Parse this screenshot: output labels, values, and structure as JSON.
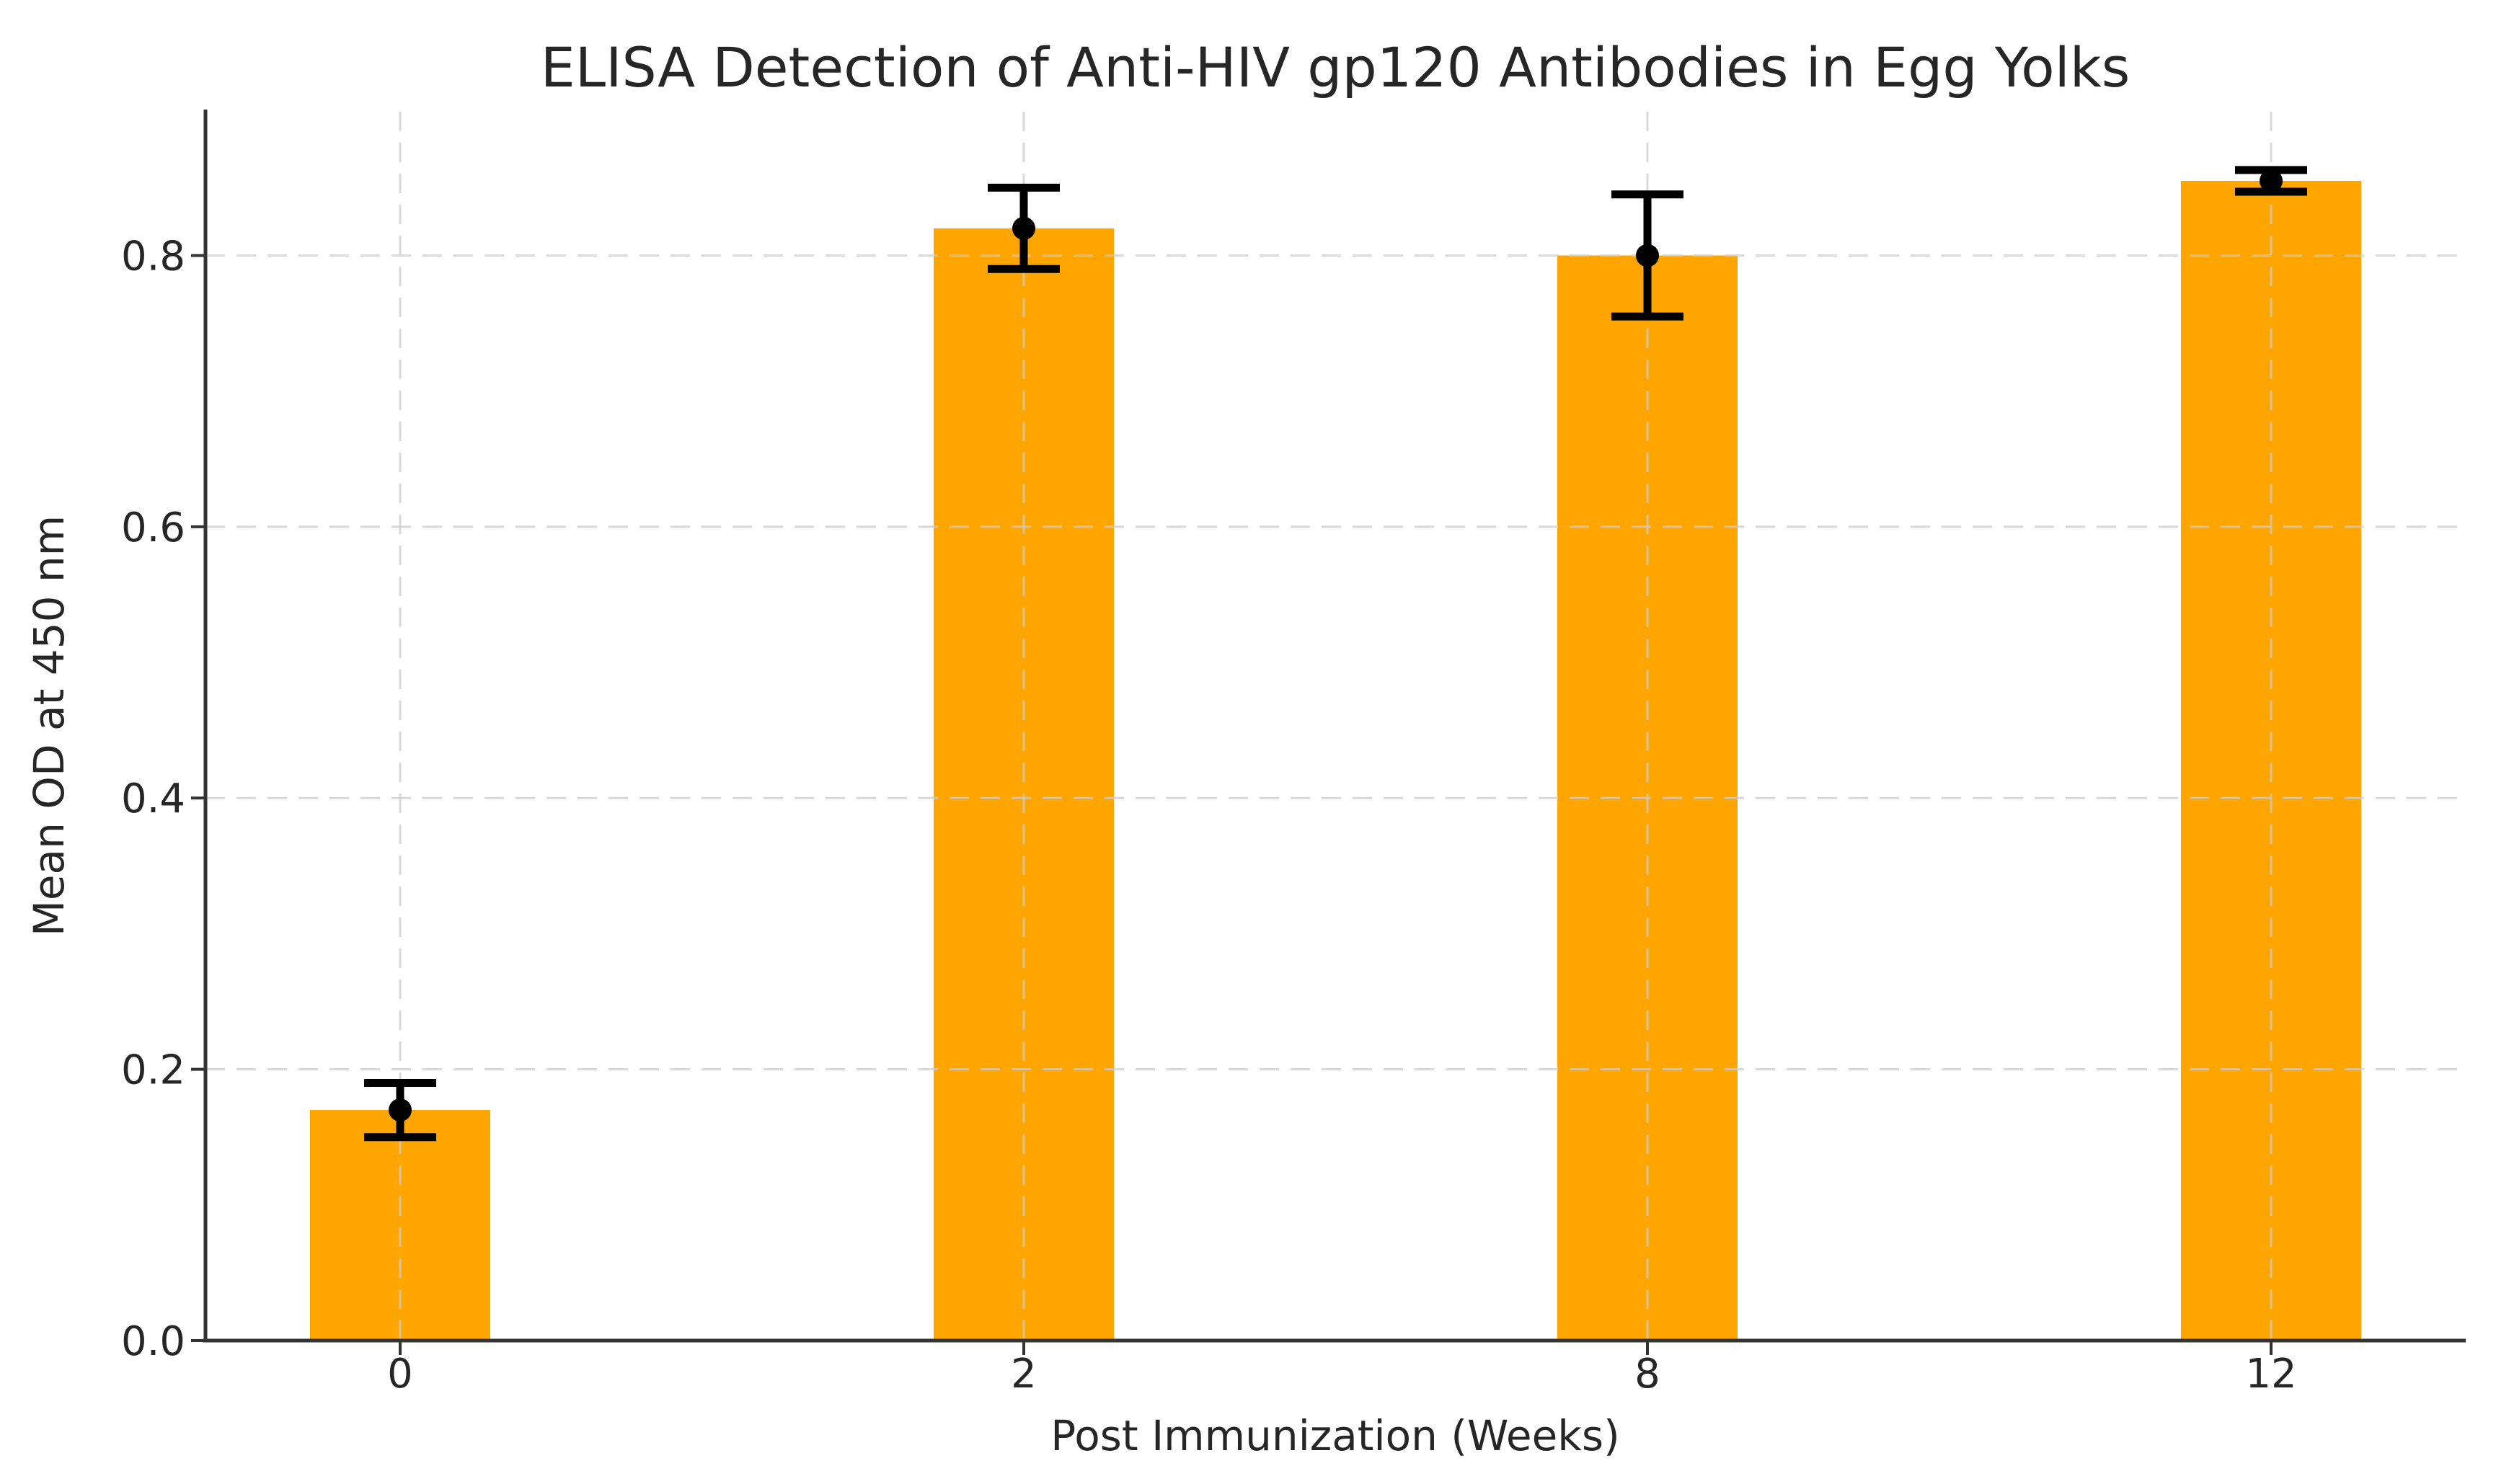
{
  "figure": {
    "background": "#ffffff"
  },
  "chart_data": {
    "type": "bar",
    "title": "ELISA Detection of Anti-HIV gp120 Antibodies in Egg Yolks",
    "xlabel": "Post Immunization (Weeks)",
    "ylabel": "Mean OD at 450 nm",
    "categories": [
      "0",
      "2",
      "8",
      "12"
    ],
    "series": [
      {
        "name": "Mean OD at 450 nm",
        "values": [
          0.17,
          0.82,
          0.8,
          0.855
        ],
        "errors": [
          0.02,
          0.03,
          0.045,
          0.008
        ]
      }
    ],
    "values": [
      0.17,
      0.82,
      0.8,
      0.855
    ],
    "errors": [
      0.02,
      0.03,
      0.045,
      0.008
    ],
    "ytick_labels": [
      "0.0",
      "0.2",
      "0.4",
      "0.6",
      "0.8"
    ],
    "ytick_values": [
      0.0,
      0.2,
      0.4,
      0.6,
      0.8
    ],
    "ylim": [
      0,
      0.906
    ],
    "grid": {
      "style": "dashed",
      "axes": "both",
      "position": "above-bars"
    },
    "legend": "none",
    "marker": "black point at mean with capped error bars",
    "colors": {
      "bar": "#FFA500",
      "error": "#000000",
      "marker": "#000000",
      "grid": "#cccccc",
      "spine": "#333333",
      "tick": "#333333",
      "text": "#262626",
      "background": "#ffffff"
    }
  }
}
